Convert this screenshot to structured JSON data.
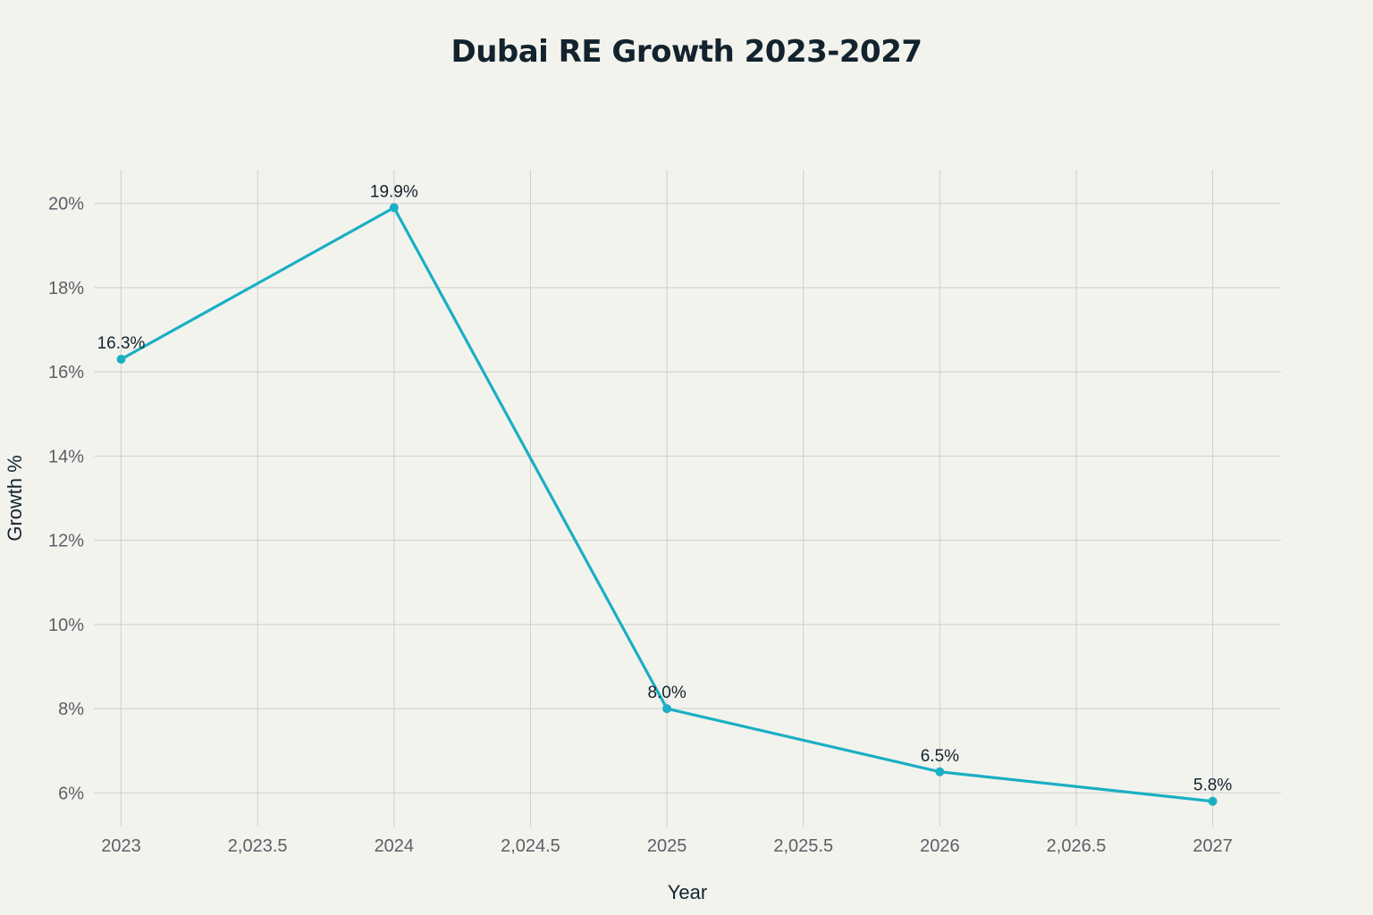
{
  "chart_data": {
    "type": "line",
    "title": "Dubai RE Growth 2023-2027",
    "xlabel": "Year",
    "ylabel": "Growth %",
    "x": [
      2023,
      2024,
      2025,
      2026,
      2027
    ],
    "series": [
      {
        "values": [
          16.3,
          19.9,
          8.0,
          6.5,
          5.8
        ],
        "data_labels": [
          "16.3%",
          "19.9%",
          "8.0%",
          "6.5%",
          "5.8%"
        ]
      }
    ],
    "xlim": [
      2022.9,
      2027.25
    ],
    "ylim": [
      5.2,
      20.8
    ],
    "x_ticks": [
      2023,
      2023.5,
      2024,
      2024.5,
      2025,
      2025.5,
      2026,
      2026.5,
      2027
    ],
    "x_tick_labels": [
      "2023",
      "2,023.5",
      "2024",
      "2,024.5",
      "2025",
      "2,025.5",
      "2026",
      "2,026.5",
      "2027"
    ],
    "y_ticks": [
      6,
      8,
      10,
      12,
      14,
      16,
      18,
      20
    ],
    "y_tick_labels": [
      "6%",
      "8%",
      "10%",
      "12%",
      "14%",
      "16%",
      "18%",
      "20%"
    ],
    "grid": true,
    "legend": "none",
    "line_color": "#1aafc4"
  }
}
